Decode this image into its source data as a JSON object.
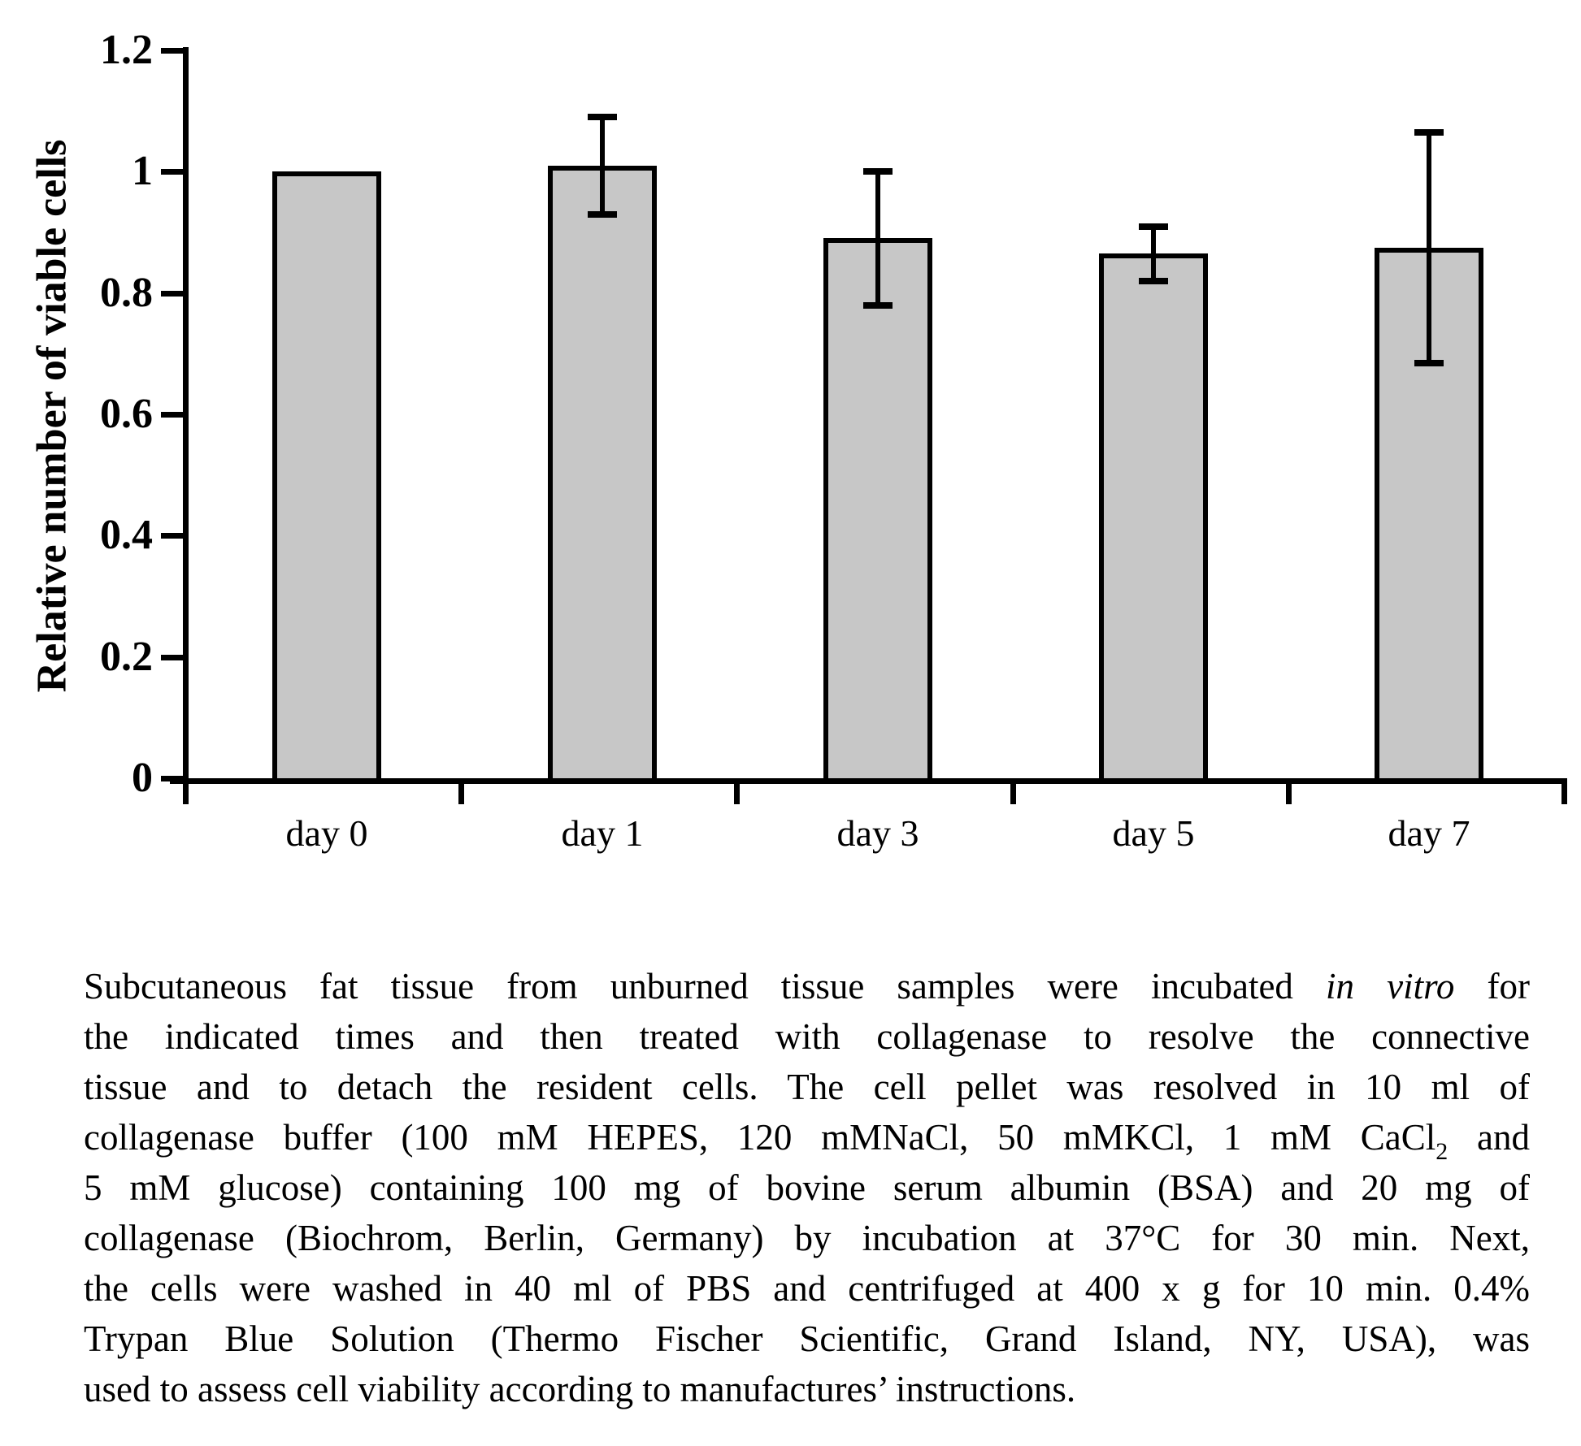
{
  "figure": {
    "background": "#ffffff",
    "ink_color": "#000000"
  },
  "chart_data": {
    "type": "bar",
    "title": "",
    "xlabel": "",
    "ylabel": "Relative number of viable cells",
    "categories": [
      "day 0",
      "day 1",
      "day 3",
      "day 5",
      "day 7"
    ],
    "values": [
      1.0,
      1.01,
      0.89,
      0.865,
      0.875
    ],
    "error_bars": [
      0,
      0.08,
      0.11,
      0.045,
      0.19
    ],
    "ylim": [
      0,
      1.2
    ],
    "yticks": [
      {
        "label": "0",
        "value": 0
      },
      {
        "label": "0.2",
        "value": 0.2
      },
      {
        "label": "0.4",
        "value": 0.4
      },
      {
        "label": "0.6",
        "value": 0.6
      },
      {
        "label": "0.8",
        "value": 0.8
      },
      {
        "label": "1",
        "value": 1.0
      },
      {
        "label": "1.2",
        "value": 1.2
      }
    ],
    "grid": false,
    "legend": null,
    "bar_fill_color": "#c7c7c7",
    "bar_border_color": "#000000"
  },
  "caption": {
    "lines": [
      [
        {
          "t": "Subcutaneous fat tissue from unburned tissue samples were incubated "
        },
        {
          "t": "in vitro",
          "style": "italic"
        },
        {
          "t": " for"
        }
      ],
      [
        {
          "t": "the indicated times and then treated with collagenase to resolve the connective"
        }
      ],
      [
        {
          "t": "tissue and to detach the resident cells. The cell pellet was resolved in 10 ml of"
        }
      ],
      [
        {
          "t": "collagenase buffer (100 mM HEPES, 120 mMNaCl, 50 mMKCl, 1 mM CaCl"
        },
        {
          "t": "2",
          "style": "sub"
        },
        {
          "t": " and"
        }
      ],
      [
        {
          "t": "5 mM glucose) containing 100 mg of bovine serum albumin (BSA) and 20 mg of"
        }
      ],
      [
        {
          "t": "collagenase (Biochrom, Berlin, Germany) by incubation at 37°C for 30 min. Next,"
        }
      ],
      [
        {
          "t": "the cells were washed in 40 ml of PBS and centrifuged at 400 x g for 10 min. 0.4%"
        }
      ],
      [
        {
          "t": "Trypan Blue Solution (Thermo Fischer Scientific, Grand Island, NY, USA), was"
        }
      ],
      [
        {
          "t": "used to assess cell viability according to manufactures’ instructions."
        }
      ]
    ]
  }
}
